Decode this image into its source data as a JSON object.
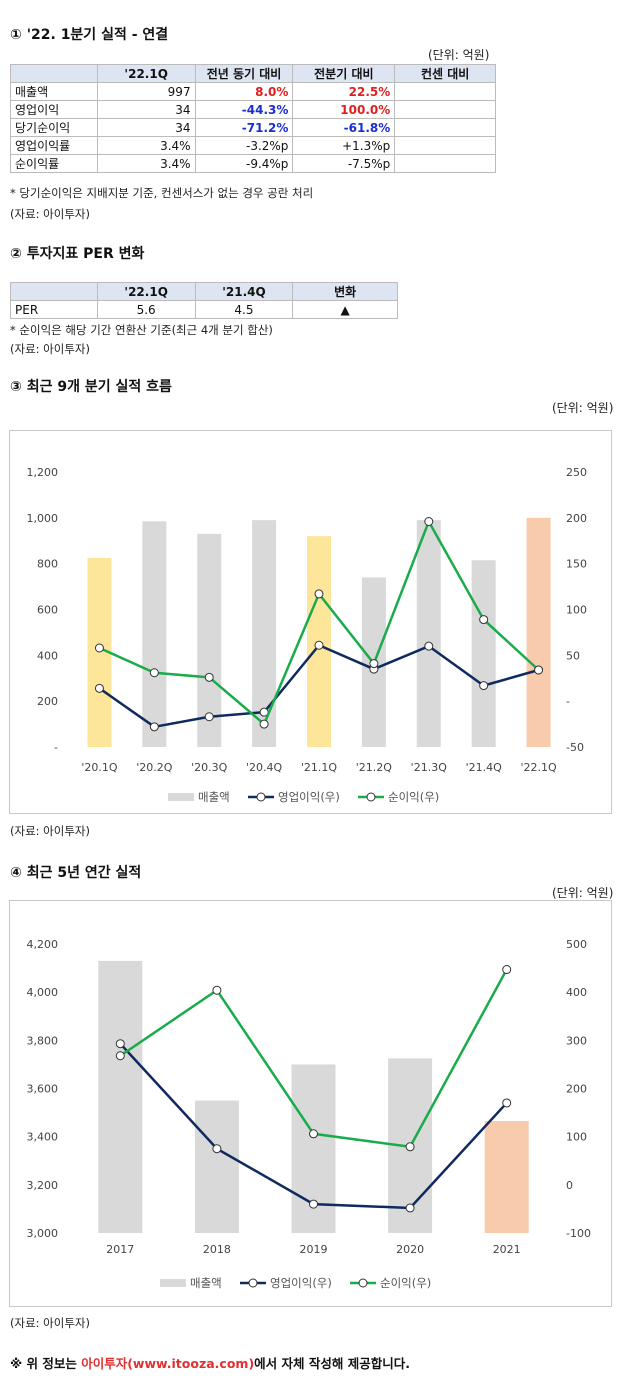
{
  "sec1": {
    "title": "① '22. 1분기 실적 - 연결",
    "unit": "(단위: 억원)",
    "headers": [
      "",
      "'22.1Q",
      "전년 동기 대비",
      "전분기 대비",
      "컨센 대비"
    ],
    "rows": [
      {
        "label": "매출액",
        "q": "997",
        "yoy": "8.0%",
        "qoq": "22.5%",
        "cons": "",
        "yoy_c": "red",
        "qoq_c": "red"
      },
      {
        "label": "영업이익",
        "q": "34",
        "yoy": "-44.3%",
        "qoq": "100.0%",
        "cons": "",
        "yoy_c": "blue",
        "qoq_c": "red"
      },
      {
        "label": "당기순이익",
        "q": "34",
        "yoy": "-71.2%",
        "qoq": "-61.8%",
        "cons": "",
        "yoy_c": "blue",
        "qoq_c": "blue"
      },
      {
        "label": "영업이익률",
        "q": "3.4%",
        "yoy": "-3.2%p",
        "qoq": "+1.3%p",
        "cons": "",
        "yoy_c": "",
        "qoq_c": ""
      },
      {
        "label": "순이익률",
        "q": "3.4%",
        "yoy": "-9.4%p",
        "qoq": "-7.5%p",
        "cons": "",
        "yoy_c": "",
        "qoq_c": ""
      }
    ],
    "note": "* 당기순이익은 지배지분 기준, 컨센서스가 없는 경우 공란 처리",
    "source": "(자료: 아이투자)"
  },
  "sec2": {
    "title": "② 투자지표 PER 변화",
    "headers": [
      "",
      "'22.1Q",
      "'21.4Q",
      "변화"
    ],
    "row": {
      "label": "PER",
      "q1": "5.6",
      "q2": "4.5",
      "chg": "▲"
    },
    "note": "* 순이익은 해당 기간 연환산 기준(최근 4개 분기 합산)",
    "source": "(자료: 아이투자)"
  },
  "sec3": {
    "title": "③ 최근 9개 분기 실적 흐름",
    "unit": "(단위: 억원)",
    "source": "(자료: 아이투자)"
  },
  "sec4": {
    "title": "④ 최근 5년 연간 실적",
    "unit": "(단위: 억원)",
    "source": "(자료: 아이투자)"
  },
  "footer": {
    "prefix": "※ 위 정보는 ",
    "highlight": "아이투자(www.itooza.com)",
    "suffix": "에서 자체 작성해 제공합니다."
  },
  "chart_data": [
    {
      "type": "bar",
      "categories": [
        "'20.1Q",
        "'20.2Q",
        "'20.3Q",
        "'20.4Q",
        "'21.1Q",
        "'21.2Q",
        "'21.3Q",
        "'21.4Q",
        "'22.1Q"
      ],
      "ylim": [
        0,
        1200
      ],
      "y_ticks": [
        "-",
        "200",
        "400",
        "600",
        "800",
        "1,000",
        "1,200"
      ],
      "y2lim": [
        -50,
        250
      ],
      "y2_ticks": [
        "-50",
        "-",
        "50",
        "100",
        "150",
        "200",
        "250"
      ],
      "bar_colors": [
        "#fde59a",
        "#d9d9d9",
        "#d9d9d9",
        "#d9d9d9",
        "#fde59a",
        "#d9d9d9",
        "#d9d9d9",
        "#d9d9d9",
        "#f8cbad"
      ],
      "series": [
        {
          "name": "매출액",
          "kind": "bar",
          "axis": "left",
          "color": "#d9d9d9",
          "values": [
            825,
            985,
            930,
            990,
            920,
            740,
            990,
            815,
            1000
          ]
        },
        {
          "name": "영업이익(우)",
          "kind": "line",
          "axis": "right",
          "color": "#0f2a5e",
          "values": [
            14,
            -28,
            -17,
            -12,
            61,
            35,
            60,
            17,
            34
          ]
        },
        {
          "name": "순이익(우)",
          "kind": "line",
          "axis": "right",
          "color": "#1aab4a",
          "values": [
            58,
            31,
            26,
            -25,
            117,
            41,
            196,
            89,
            34
          ]
        }
      ]
    },
    {
      "type": "bar",
      "categories": [
        "2017",
        "2018",
        "2019",
        "2020",
        "2021"
      ],
      "ylim": [
        3000,
        4200
      ],
      "y_ticks": [
        "3,000",
        "3,200",
        "3,400",
        "3,600",
        "3,800",
        "4,000",
        "4,200"
      ],
      "y2lim": [
        -100,
        500
      ],
      "y2_ticks": [
        "-100",
        "0",
        "100",
        "200",
        "300",
        "400",
        "500"
      ],
      "bar_colors": [
        "#d9d9d9",
        "#d9d9d9",
        "#d9d9d9",
        "#d9d9d9",
        "#f8cbad"
      ],
      "series": [
        {
          "name": "매출액",
          "kind": "bar",
          "axis": "left",
          "color": "#d9d9d9",
          "values": [
            4130,
            3550,
            3700,
            3725,
            3465
          ]
        },
        {
          "name": "영업이익(우)",
          "kind": "line",
          "axis": "right",
          "color": "#0f2a5e",
          "values": [
            293,
            75,
            -40,
            -48,
            170
          ]
        },
        {
          "name": "순이익(우)",
          "kind": "line",
          "axis": "right",
          "color": "#1aab4a",
          "values": [
            268,
            404,
            106,
            79,
            447
          ]
        }
      ]
    }
  ]
}
